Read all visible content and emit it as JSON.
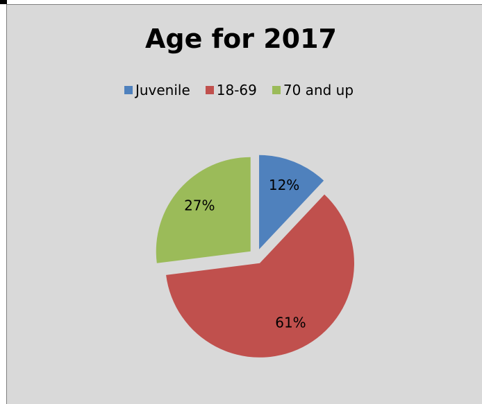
{
  "chart_data": {
    "type": "pie",
    "title": "Age for 2017",
    "categories": [
      "Juvenile",
      "18-69",
      "70 and up"
    ],
    "values": [
      12,
      61,
      27
    ],
    "value_format": "percent",
    "data_labels": [
      "12%",
      "61%",
      "27%"
    ],
    "colors": [
      "#4f81bd",
      "#c0504d",
      "#9bbb59"
    ],
    "exploded": true,
    "legend_position": "top"
  },
  "colors": {
    "background": "#d9d9d9",
    "frame_border": "#7f7f7f"
  }
}
